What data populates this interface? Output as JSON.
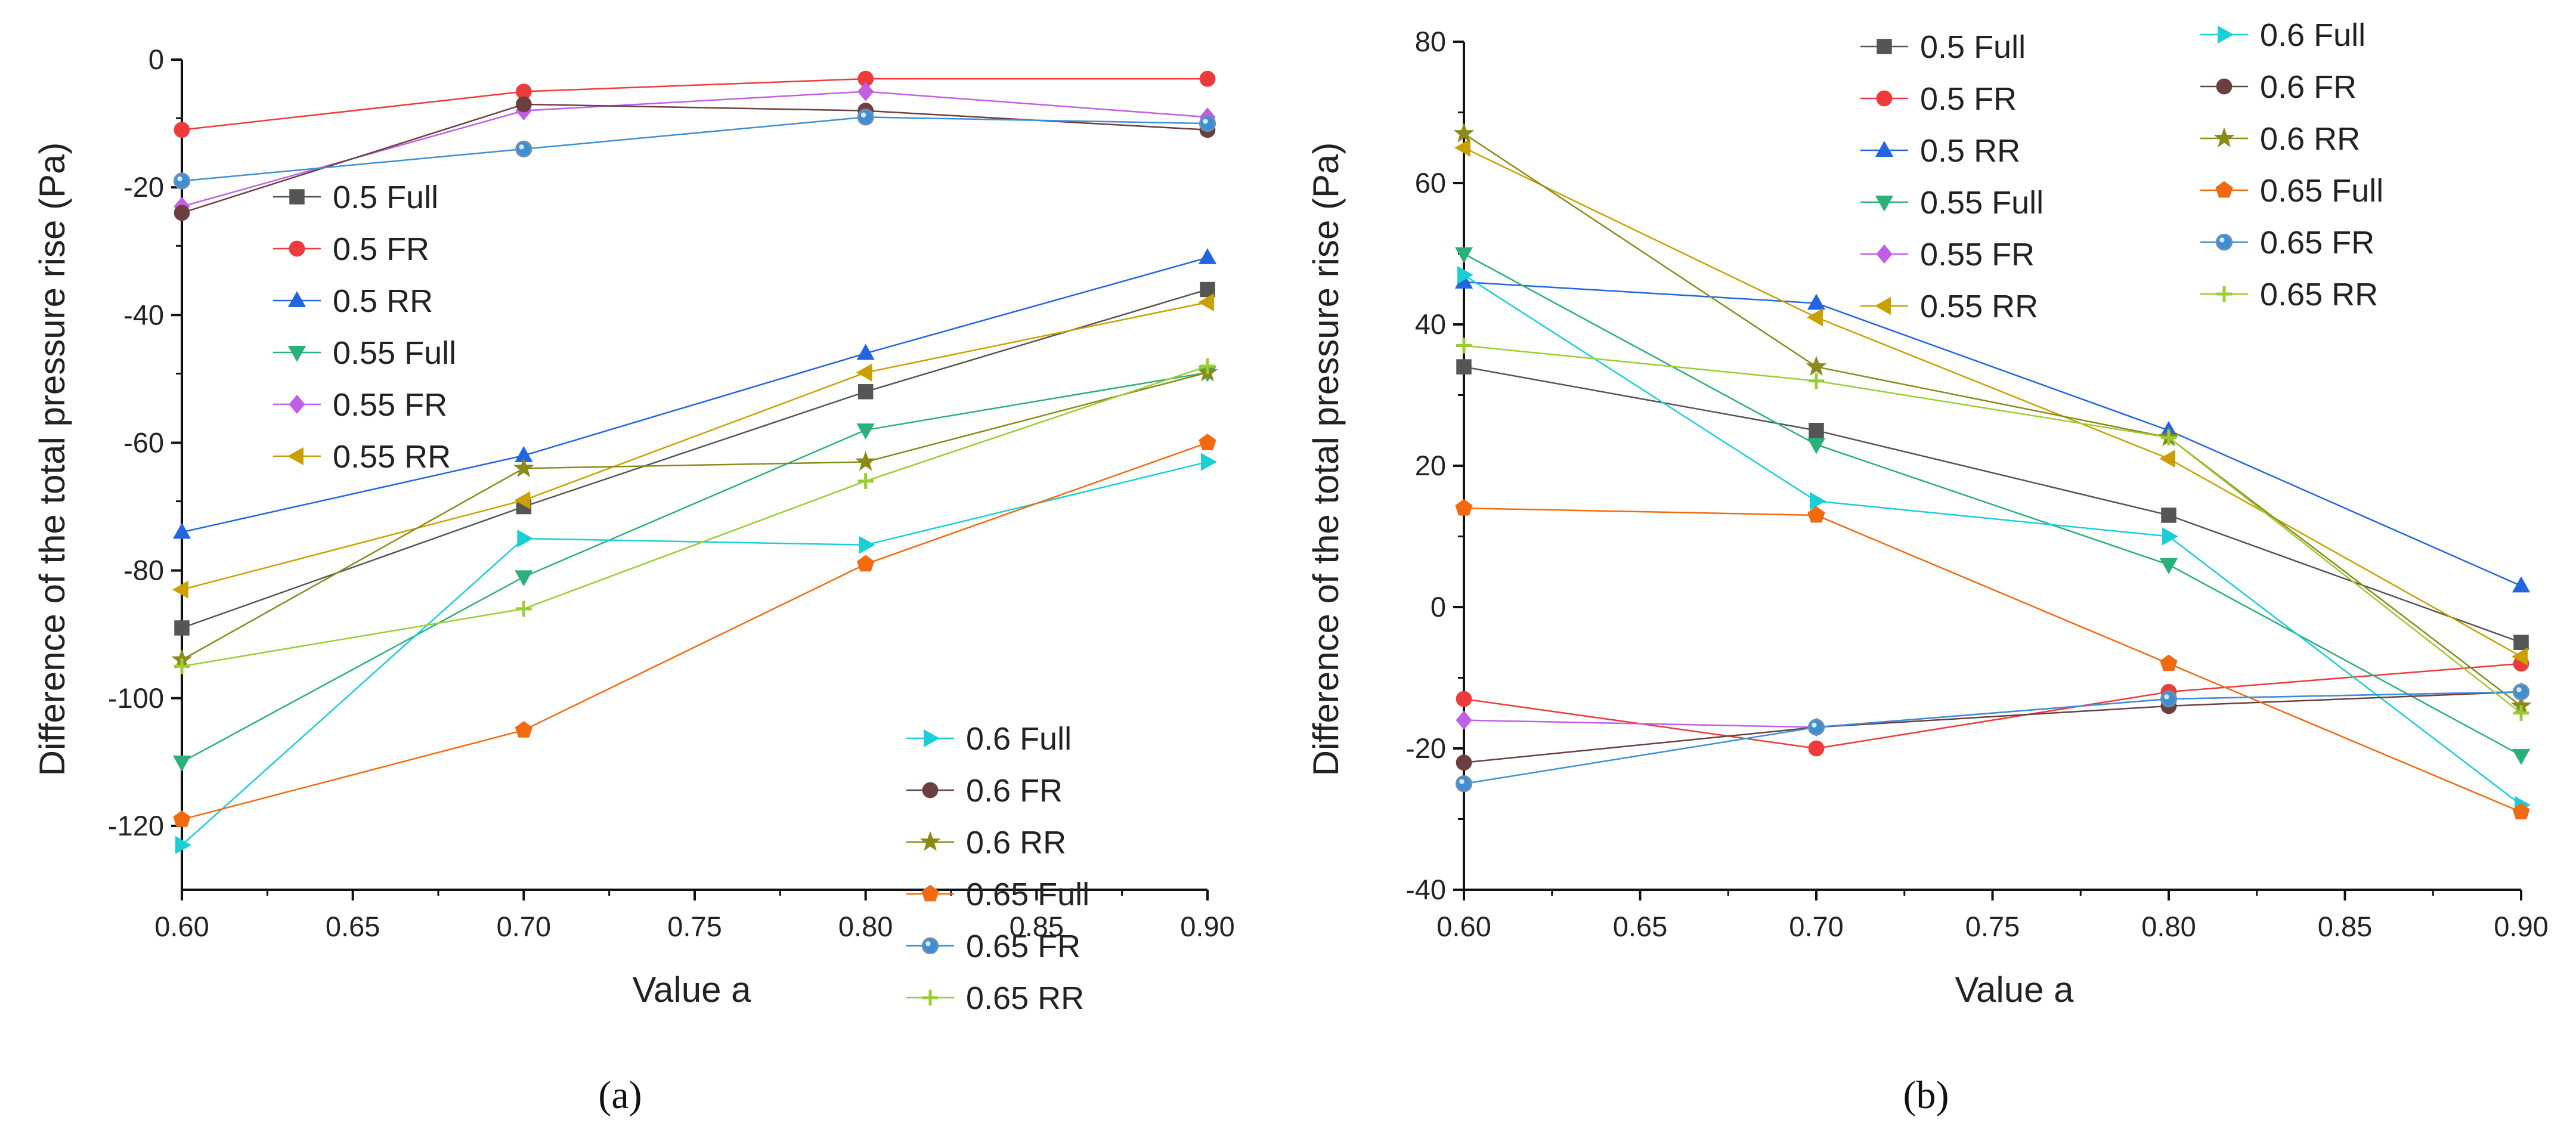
{
  "chart_data": [
    {
      "type": "line",
      "panel_label": "(a)",
      "xlabel": "Value a",
      "ylabel": "Difference of the total pressure rise (Pa)",
      "x": [
        0.6,
        0.7,
        0.8,
        0.9
      ],
      "xlim": [
        0.6,
        0.9
      ],
      "ylim": [
        -130,
        0
      ],
      "xticks": [
        "0.60",
        "0.65",
        "0.70",
        "0.75",
        "0.80",
        "0.85",
        "0.90"
      ],
      "yticks": [
        "0",
        "-20",
        "-40",
        "-60",
        "-80",
        "-100",
        "-120"
      ],
      "grid": false,
      "legend": [
        {
          "placement": "upper-left",
          "entries": [
            "0.5 Full",
            "0.5 FR",
            "0.5 RR",
            "0.55 Full",
            "0.55 FR",
            "0.55 RR"
          ]
        },
        {
          "placement": "lower-right",
          "entries": [
            "0.6 Full",
            "0.6 FR",
            "0.6 RR",
            "0.65 Full",
            "0.65 FR",
            "0.65 RR"
          ]
        }
      ],
      "series": [
        {
          "name": "0.5 Full",
          "color": "#555555",
          "marker": "square",
          "values": [
            -89,
            -70,
            -52,
            -36
          ]
        },
        {
          "name": "0.5 FR",
          "color": "#ee3a3a",
          "marker": "circle",
          "values": [
            -11,
            -5,
            -3,
            -3
          ]
        },
        {
          "name": "0.5 RR",
          "color": "#2166e0",
          "marker": "triangle-up",
          "values": [
            -74,
            -62,
            -46,
            -31
          ]
        },
        {
          "name": "0.55 Full",
          "color": "#2ab07a",
          "marker": "triangle-down",
          "values": [
            -110,
            -81,
            -58,
            -49
          ]
        },
        {
          "name": "0.55 FR",
          "color": "#c05ee6",
          "marker": "diamond",
          "values": [
            -23,
            -8,
            -5,
            -9
          ]
        },
        {
          "name": "0.55 RR",
          "color": "#c9a000",
          "marker": "triangle-left",
          "values": [
            -83,
            -69,
            -49,
            -38
          ]
        },
        {
          "name": "0.6 Full",
          "color": "#18cfd8",
          "marker": "triangle-right",
          "values": [
            -123,
            -75,
            -76,
            -63
          ]
        },
        {
          "name": "0.6 FR",
          "color": "#6b3f3f",
          "marker": "circle",
          "values": [
            -24,
            -7,
            -8,
            -11
          ]
        },
        {
          "name": "0.6 RR",
          "color": "#8a8a1a",
          "marker": "star",
          "values": [
            -94,
            -64,
            -63,
            -49
          ]
        },
        {
          "name": "0.65 Full",
          "color": "#f26a10",
          "marker": "pentagon",
          "values": [
            -119,
            -105,
            -79,
            -60
          ]
        },
        {
          "name": "0.65 FR",
          "color": "#3d8fd4",
          "marker": "hex-circle",
          "values": [
            -19,
            -14,
            -9,
            -10
          ]
        },
        {
          "name": "0.65 RR",
          "color": "#9acd32",
          "marker": "plus",
          "values": [
            -95,
            -86,
            -66,
            -48
          ]
        }
      ]
    },
    {
      "type": "line",
      "panel_label": "(b)",
      "xlabel": "Value a",
      "ylabel": "Difference of the total pressure rise (Pa)",
      "x": [
        0.6,
        0.7,
        0.8,
        0.9
      ],
      "xlim": [
        0.6,
        0.9
      ],
      "ylim": [
        -40,
        80
      ],
      "xticks": [
        "0.60",
        "0.65",
        "0.70",
        "0.75",
        "0.80",
        "0.85",
        "0.90"
      ],
      "yticks": [
        "80",
        "60",
        "40",
        "20",
        "0",
        "-20",
        "-40"
      ],
      "grid": false,
      "legend": [
        {
          "placement": "top-center",
          "entries": [
            "0.5 Full",
            "0.5 FR",
            "0.5 RR",
            "0.55 Full",
            "0.55 FR",
            "0.55 RR"
          ]
        },
        {
          "placement": "top-right",
          "entries": [
            "0.6 Full",
            "0.6 FR",
            "0.6 RR",
            "0.65 Full",
            "0.65 FR",
            "0.65 RR"
          ]
        }
      ],
      "series": [
        {
          "name": "0.5 Full",
          "color": "#555555",
          "marker": "square",
          "values": [
            34,
            25,
            13,
            -5
          ]
        },
        {
          "name": "0.5 FR",
          "color": "#ee3a3a",
          "marker": "circle",
          "values": [
            -13,
            -20,
            -12,
            -8
          ]
        },
        {
          "name": "0.5 RR",
          "color": "#2166e0",
          "marker": "triangle-up",
          "values": [
            46,
            43,
            25,
            3
          ]
        },
        {
          "name": "0.55 Full",
          "color": "#2ab07a",
          "marker": "triangle-down",
          "values": [
            50,
            23,
            6,
            -21
          ]
        },
        {
          "name": "0.55 FR",
          "color": "#c05ee6",
          "marker": "diamond",
          "values": [
            -16,
            -17,
            -13,
            -12
          ]
        },
        {
          "name": "0.55 RR",
          "color": "#c9a000",
          "marker": "triangle-left",
          "values": [
            65,
            41,
            21,
            -7
          ]
        },
        {
          "name": "0.6 Full",
          "color": "#18cfd8",
          "marker": "triangle-right",
          "values": [
            47,
            15,
            10,
            -28
          ]
        },
        {
          "name": "0.6 FR",
          "color": "#6b3f3f",
          "marker": "circle",
          "values": [
            -22,
            -17,
            -14,
            -12
          ]
        },
        {
          "name": "0.6 RR",
          "color": "#8a8a1a",
          "marker": "star",
          "values": [
            67,
            34,
            24,
            -14
          ]
        },
        {
          "name": "0.65 Full",
          "color": "#f26a10",
          "marker": "pentagon",
          "values": [
            14,
            13,
            -8,
            -29
          ]
        },
        {
          "name": "0.65 FR",
          "color": "#3d8fd4",
          "marker": "hex-circle",
          "values": [
            -25,
            -17,
            -13,
            -12
          ]
        },
        {
          "name": "0.65 RR",
          "color": "#9acd32",
          "marker": "plus",
          "values": [
            37,
            32,
            24,
            -15
          ]
        }
      ]
    }
  ]
}
